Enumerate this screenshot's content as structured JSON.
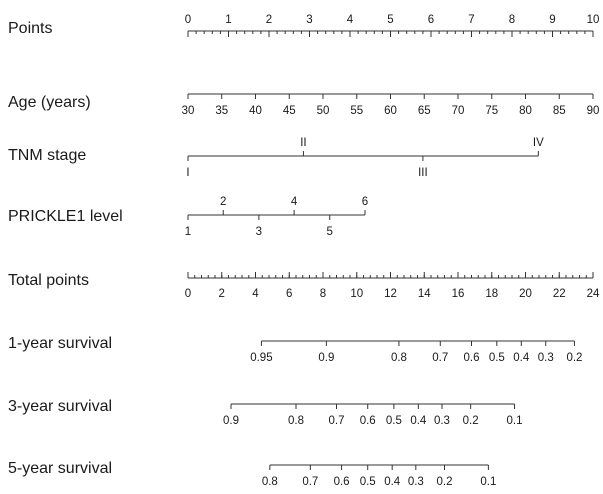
{
  "chart_data": {
    "type": "nomogram",
    "title": "",
    "rows": [
      {
        "id": "points",
        "label": "Points",
        "scale_range": [
          0,
          10
        ],
        "ticks": [
          {
            "value": 0,
            "label": "0",
            "side": "above"
          },
          {
            "value": 1,
            "label": "1",
            "side": "above"
          },
          {
            "value": 2,
            "label": "2",
            "side": "above"
          },
          {
            "value": 3,
            "label": "3",
            "side": "above"
          },
          {
            "value": 4,
            "label": "4",
            "side": "above"
          },
          {
            "value": 5,
            "label": "5",
            "side": "above"
          },
          {
            "value": 6,
            "label": "6",
            "side": "above"
          },
          {
            "value": 7,
            "label": "7",
            "side": "above"
          },
          {
            "value": 8,
            "label": "8",
            "side": "above"
          },
          {
            "value": 9,
            "label": "9",
            "side": "above"
          },
          {
            "value": 10,
            "label": "10",
            "side": "above"
          }
        ],
        "minor_step": 0.2
      },
      {
        "id": "age",
        "label": "Age (years)",
        "scale_range": [
          30,
          90
        ],
        "ticks": [
          {
            "value": 30,
            "label": "30",
            "side": "below",
            "points": 0
          },
          {
            "value": 35,
            "label": "35",
            "side": "below",
            "points": 0.833
          },
          {
            "value": 40,
            "label": "40",
            "side": "below",
            "points": 1.667
          },
          {
            "value": 45,
            "label": "45",
            "side": "below",
            "points": 2.5
          },
          {
            "value": 50,
            "label": "50",
            "side": "below",
            "points": 3.333
          },
          {
            "value": 55,
            "label": "55",
            "side": "below",
            "points": 4.167
          },
          {
            "value": 60,
            "label": "60",
            "side": "below",
            "points": 5
          },
          {
            "value": 65,
            "label": "65",
            "side": "below",
            "points": 5.833
          },
          {
            "value": 70,
            "label": "70",
            "side": "below",
            "points": 6.667
          },
          {
            "value": 75,
            "label": "75",
            "side": "below",
            "points": 7.5
          },
          {
            "value": 80,
            "label": "80",
            "side": "below",
            "points": 8.333
          },
          {
            "value": 85,
            "label": "85",
            "side": "below",
            "points": 9.167
          },
          {
            "value": 90,
            "label": "90",
            "side": "below",
            "points": 10
          }
        ]
      },
      {
        "id": "tnm",
        "label": "TNM stage",
        "ticks": [
          {
            "label": "I",
            "side": "below",
            "points": 0
          },
          {
            "label": "II",
            "side": "above",
            "points": 2.85
          },
          {
            "label": "III",
            "side": "below",
            "points": 5.8
          },
          {
            "label": "IV",
            "side": "above",
            "points": 8.65
          }
        ]
      },
      {
        "id": "prickle1",
        "label": "PRICKLE1 level",
        "ticks": [
          {
            "label": "1",
            "side": "below",
            "points": 0
          },
          {
            "label": "2",
            "side": "above",
            "points": 0.87
          },
          {
            "label": "3",
            "side": "below",
            "points": 1.75
          },
          {
            "label": "4",
            "side": "above",
            "points": 2.62
          },
          {
            "label": "5",
            "side": "below",
            "points": 3.5
          },
          {
            "label": "6",
            "side": "above",
            "points": 4.37
          }
        ]
      },
      {
        "id": "total",
        "label": "Total points",
        "scale_range": [
          0,
          24
        ],
        "ticks": [
          {
            "value": 0,
            "label": "0",
            "side": "below"
          },
          {
            "value": 2,
            "label": "2",
            "side": "below"
          },
          {
            "value": 4,
            "label": "4",
            "side": "below"
          },
          {
            "value": 6,
            "label": "6",
            "side": "below"
          },
          {
            "value": 8,
            "label": "8",
            "side": "below"
          },
          {
            "value": 10,
            "label": "10",
            "side": "below"
          },
          {
            "value": 12,
            "label": "12",
            "side": "below"
          },
          {
            "value": 14,
            "label": "14",
            "side": "below"
          },
          {
            "value": 16,
            "label": "16",
            "side": "below"
          },
          {
            "value": 18,
            "label": "18",
            "side": "below"
          },
          {
            "value": 20,
            "label": "20",
            "side": "below"
          },
          {
            "value": 22,
            "label": "22",
            "side": "below"
          },
          {
            "value": 24,
            "label": "24",
            "side": "below"
          }
        ],
        "minor_step": 0.4
      },
      {
        "id": "surv1",
        "label": "1-year survival",
        "ticks": [
          {
            "label": "0.95",
            "side": "below",
            "total_points": 4.35
          },
          {
            "label": "0.9",
            "side": "below",
            "total_points": 8.2
          },
          {
            "label": "0.8",
            "side": "below",
            "total_points": 12.5
          },
          {
            "label": "0.7",
            "side": "below",
            "total_points": 14.95
          },
          {
            "label": "0.6",
            "side": "below",
            "total_points": 16.8
          },
          {
            "label": "0.5",
            "side": "below",
            "total_points": 18.3
          },
          {
            "label": "0.4",
            "side": "below",
            "total_points": 19.75
          },
          {
            "label": "0.3",
            "side": "below",
            "total_points": 21.2
          },
          {
            "label": "0.2",
            "side": "below",
            "total_points": 22.9
          }
        ]
      },
      {
        "id": "surv3",
        "label": "3-year survival",
        "ticks": [
          {
            "label": "0.9",
            "side": "below",
            "total_points": 2.55
          },
          {
            "label": "0.8",
            "side": "below",
            "total_points": 6.4
          },
          {
            "label": "0.7",
            "side": "below",
            "total_points": 8.8
          },
          {
            "label": "0.6",
            "side": "below",
            "total_points": 10.65
          },
          {
            "label": "0.5",
            "side": "below",
            "total_points": 12.2
          },
          {
            "label": "0.4",
            "side": "below",
            "total_points": 13.65
          },
          {
            "label": "0.3",
            "side": "below",
            "total_points": 15.05
          },
          {
            "label": "0.2",
            "side": "below",
            "total_points": 16.75
          },
          {
            "label": "0.1",
            "side": "below",
            "total_points": 19.35
          }
        ]
      },
      {
        "id": "surv5",
        "label": "5-year survival",
        "ticks": [
          {
            "label": "0.8",
            "side": "below",
            "total_points": 4.85
          },
          {
            "label": "0.7",
            "side": "below",
            "total_points": 7.25
          },
          {
            "label": "0.6",
            "side": "below",
            "total_points": 9.1
          },
          {
            "label": "0.5",
            "side": "below",
            "total_points": 10.65
          },
          {
            "label": "0.4",
            "side": "below",
            "total_points": 12.1
          },
          {
            "label": "0.3",
            "side": "below",
            "total_points": 13.5
          },
          {
            "label": "0.2",
            "side": "below",
            "total_points": 15.2
          },
          {
            "label": "0.1",
            "side": "below",
            "total_points": 17.8
          }
        ]
      }
    ]
  }
}
